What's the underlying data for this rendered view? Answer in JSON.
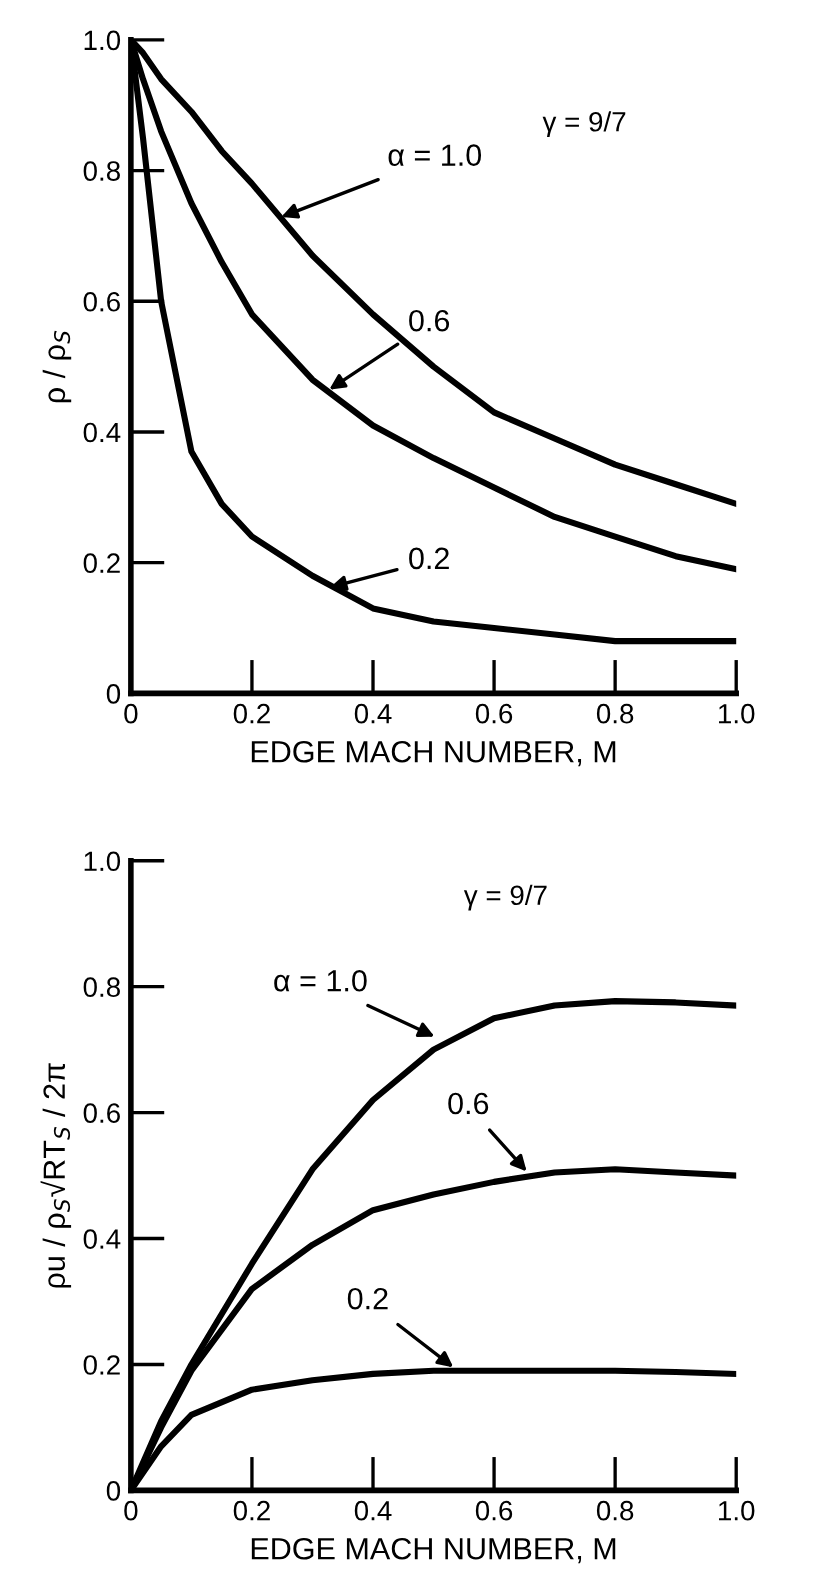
{
  "chart_data": [
    {
      "type": "line",
      "xlabel": "EDGE MACH NUMBER, M",
      "ylabel": "ρ / ρ$_{S}$",
      "xlim": [
        0,
        1.0
      ],
      "ylim": [
        0,
        1.0
      ],
      "xticks": [
        0,
        0.2,
        0.4,
        0.6,
        0.8,
        {
          "value": 1,
          "label": "1.0"
        }
      ],
      "yticks": [
        0,
        0.2,
        0.4,
        0.6,
        0.8,
        {
          "value": 1,
          "label": "1.0"
        }
      ],
      "grid": false,
      "legend": false,
      "marker": "none",
      "line_style": "solid",
      "x": [
        0,
        0.02,
        0.05,
        0.1,
        0.15,
        0.2,
        0.3,
        0.4,
        0.5,
        0.6,
        0.7,
        0.8,
        0.9,
        1.0
      ],
      "series": [
        {
          "color": "#000000",
          "values": [
            1.0,
            0.98,
            0.94,
            0.89,
            0.83,
            0.78,
            0.67,
            0.58,
            0.5,
            0.43,
            0.39,
            0.35,
            0.32,
            0.29
          ]
        },
        {
          "color": "#000000",
          "values": [
            1.0,
            0.94,
            0.86,
            0.75,
            0.66,
            0.58,
            0.48,
            0.41,
            0.36,
            0.315,
            0.27,
            0.24,
            0.21,
            0.19
          ]
        },
        {
          "color": "#000000",
          "values": [
            1.0,
            0.85,
            0.6,
            0.37,
            0.29,
            0.24,
            0.18,
            0.13,
            0.11,
            0.1,
            0.09,
            0.08,
            0.08,
            0.08
          ]
        }
      ],
      "annotations": [
        {
          "text": "α = 1.0",
          "x": 0.24,
          "y": 0.726
        },
        {
          "text": "0.6",
          "x": 0.32,
          "y": 0.46
        },
        {
          "text": "0.2",
          "x": 0.32,
          "y": 0.16
        },
        "γ = 9/7"
      ]
    },
    {
      "type": "line",
      "xlabel": "EDGE MACH NUMBER, M",
      "ylabel": "ρu / ρ$_{S}$√RT$_{S}$ / 2π",
      "xlim": [
        0,
        1.0
      ],
      "ylim": [
        0,
        1.0
      ],
      "xticks": [
        0,
        0.2,
        0.4,
        0.6,
        0.8,
        {
          "value": 1,
          "label": "1.0"
        }
      ],
      "yticks": [
        0,
        0.2,
        0.4,
        0.6,
        0.8,
        {
          "value": 1,
          "label": "1.0"
        }
      ],
      "grid": false,
      "legend": false,
      "marker": "none",
      "line_style": "solid",
      "x": [
        0,
        0.05,
        0.1,
        0.2,
        0.3,
        0.4,
        0.5,
        0.6,
        0.7,
        0.8,
        0.9,
        1.0
      ],
      "series": [
        {
          "color": "#000000",
          "values": [
            0,
            0.11,
            0.2,
            0.36,
            0.51,
            0.62,
            0.7,
            0.75,
            0.77,
            0.777,
            0.775,
            0.77
          ]
        },
        {
          "color": "#000000",
          "values": [
            0,
            0.1,
            0.19,
            0.32,
            0.39,
            0.445,
            0.47,
            0.49,
            0.505,
            0.51,
            0.505,
            0.5
          ]
        },
        {
          "color": "#000000",
          "values": [
            0,
            0.07,
            0.12,
            0.16,
            0.175,
            0.185,
            0.19,
            0.19,
            0.19,
            0.19,
            0.188,
            0.185
          ]
        }
      ],
      "annotations": [
        {
          "text": "α = 1.0",
          "x": 0.51,
          "y": 0.717
        },
        {
          "text": "0.6",
          "x": 0.66,
          "y": 0.5
        },
        {
          "text": "0.2",
          "x": 0.54,
          "y": 0.19
        },
        "γ = 9/7"
      ]
    }
  ]
}
